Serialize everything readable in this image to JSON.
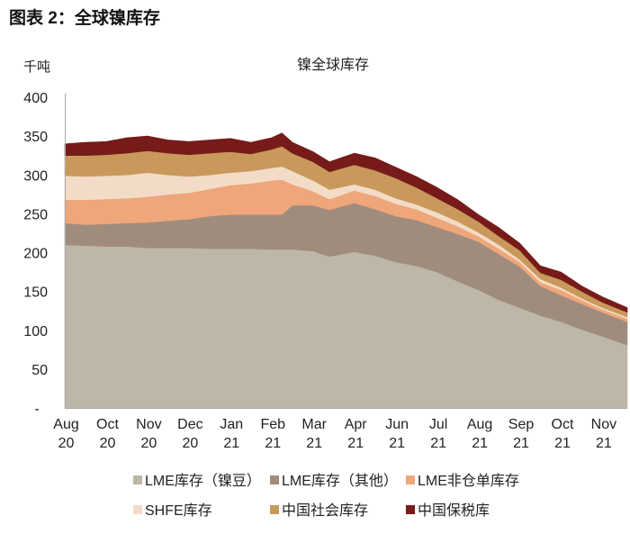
{
  "figure_title": "图表 2：全球镍库存",
  "chart_data": {
    "type": "area",
    "stacked": true,
    "title": "镍全球库存",
    "ylabel": "千吨",
    "ylim": [
      0,
      400
    ],
    "xlim": [
      0,
      13.6
    ],
    "yticks": [
      {
        "value": 400,
        "label": "400"
      },
      {
        "value": 350,
        "label": "350"
      },
      {
        "value": 300,
        "label": "300"
      },
      {
        "value": 250,
        "label": "250"
      },
      {
        "value": 200,
        "label": "200"
      },
      {
        "value": 150,
        "label": "150"
      },
      {
        "value": 100,
        "label": "100"
      },
      {
        "value": 50,
        "label": "50"
      },
      {
        "value": 0,
        "label": "-"
      }
    ],
    "xticks": [
      {
        "at": 0,
        "month": "Aug",
        "year": "20"
      },
      {
        "at": 1,
        "month": "Oct",
        "year": "20"
      },
      {
        "at": 2,
        "month": "Nov",
        "year": "20"
      },
      {
        "at": 3,
        "month": "Dec",
        "year": "20"
      },
      {
        "at": 4,
        "month": "Jan",
        "year": "21"
      },
      {
        "at": 5,
        "month": "Feb",
        "year": "21"
      },
      {
        "at": 6,
        "month": "Mar",
        "year": "21"
      },
      {
        "at": 7,
        "month": "Apr",
        "year": "21"
      },
      {
        "at": 8,
        "month": "Jun",
        "year": "21"
      },
      {
        "at": 9,
        "month": "Jul",
        "year": "21"
      },
      {
        "at": 10,
        "month": "Aug",
        "year": "21"
      },
      {
        "at": 11,
        "month": "Sep",
        "year": "21"
      },
      {
        "at": 12,
        "month": "Oct",
        "year": "21"
      },
      {
        "at": 13,
        "month": "Nov",
        "year": "21"
      }
    ],
    "x": [
      0,
      0.5,
      1,
      1.5,
      2,
      2.5,
      3,
      3.5,
      4,
      4.5,
      5,
      5.25,
      5.5,
      6,
      6.4,
      7,
      7.5,
      8,
      8.5,
      9,
      9.5,
      10,
      10.5,
      11,
      11.5,
      12,
      12.5,
      13,
      13.6
    ],
    "series": [
      {
        "name": "LME库存（镍豆）",
        "color": "#bcb7a8",
        "values": [
          210,
          209,
          208,
          208,
          206,
          206,
          206,
          205,
          205,
          205,
          204,
          204,
          204,
          202,
          195,
          201,
          196,
          188,
          183,
          175,
          163,
          152,
          139,
          129,
          119,
          111,
          101,
          92,
          81
        ]
      },
      {
        "name": "LME库存（其他）",
        "color": "#a08c7d",
        "values": [
          28,
          27,
          29,
          30,
          33,
          35,
          37,
          42,
          44,
          44,
          45,
          45,
          57,
          59,
          60,
          63,
          60,
          59,
          59,
          58,
          61,
          62,
          59,
          53,
          38,
          34,
          33,
          31,
          30
        ]
      },
      {
        "name": "LME非仓单库存",
        "color": "#efa67a",
        "values": [
          30,
          32,
          32,
          32,
          33,
          34,
          34,
          35,
          38,
          40,
          44,
          45,
          27,
          18,
          14,
          16,
          17,
          16,
          14,
          12,
          10,
          7,
          7,
          6,
          5,
          7,
          5,
          4,
          4
        ]
      },
      {
        "name": "SHFE库存",
        "color": "#f3dcc7",
        "values": [
          31,
          30,
          30,
          30,
          31,
          25,
          21,
          18,
          16,
          16,
          16,
          17,
          17,
          14,
          12,
          8,
          8,
          7,
          6,
          7,
          6,
          5,
          5,
          3,
          4,
          3,
          2,
          2,
          2
        ]
      },
      {
        "name": "中国社会库存",
        "color": "#c8995b",
        "values": [
          26,
          27,
          27,
          28,
          28,
          28,
          28,
          28,
          27,
          22,
          24,
          26,
          23,
          24,
          23,
          25,
          25,
          26,
          22,
          18,
          16,
          14,
          11,
          12,
          8,
          10,
          9,
          7,
          6
        ]
      },
      {
        "name": "中国保税库",
        "color": "#761b19",
        "values": [
          15,
          17,
          17,
          20,
          19,
          17,
          17,
          17,
          17,
          15,
          15,
          17,
          14,
          13,
          13,
          15,
          16,
          14,
          14,
          14,
          12,
          9,
          11,
          9,
          9,
          10,
          7,
          7,
          6
        ]
      }
    ]
  }
}
